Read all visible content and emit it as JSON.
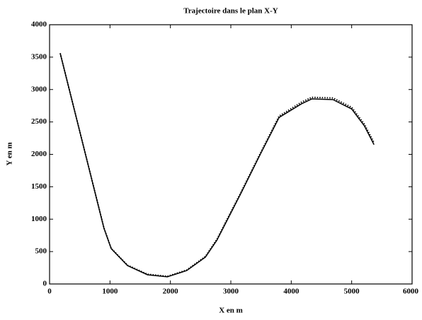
{
  "chart_data": {
    "type": "line",
    "title": "Trajectoire dans le plan X-Y",
    "xlabel": "X en m",
    "ylabel": "Y en m",
    "x": [
      176,
      900,
      1020,
      1290,
      1620,
      1950,
      2270,
      2580,
      2770,
      3165,
      3490,
      3800,
      4170,
      4340,
      4690,
      5000,
      5210,
      5370
    ],
    "series": [
      {
        "color": "#000000",
        "linestyle": "solid",
        "values": [
          3560,
          860,
          545,
          283,
          142,
          110,
          207,
          414,
          676,
          1395,
          2005,
          2570,
          2780,
          2855,
          2845,
          2700,
          2440,
          2150
        ]
      },
      {
        "color": "#000000",
        "linestyle": "dotted",
        "values": [
          3560,
          865,
          550,
          290,
          150,
          118,
          215,
          425,
          690,
          1410,
          2020,
          2590,
          2805,
          2880,
          2870,
          2725,
          2465,
          2180
        ]
      }
    ],
    "xlim": [
      0,
      6000
    ],
    "xticks": [
      0,
      1000,
      2000,
      3000,
      4000,
      5000,
      6000
    ],
    "ylim": [
      0,
      4000
    ],
    "yticks": [
      0,
      500,
      1000,
      1500,
      2000,
      2500,
      3000,
      3500,
      4000
    ],
    "grid": false
  }
}
